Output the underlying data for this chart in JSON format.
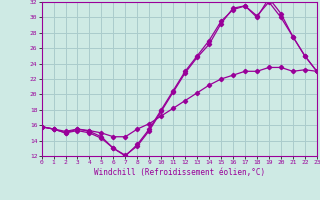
{
  "xlabel": "Windchill (Refroidissement éolien,°C)",
  "background_color": "#ceeae4",
  "grid_color": "#aacccc",
  "line_color": "#990099",
  "x_range": [
    0,
    23
  ],
  "y_range": [
    12,
    32
  ],
  "y_ticks": [
    12,
    14,
    16,
    18,
    20,
    22,
    24,
    26,
    28,
    30,
    32
  ],
  "x_ticks": [
    0,
    1,
    2,
    3,
    4,
    5,
    6,
    7,
    8,
    9,
    10,
    11,
    12,
    13,
    14,
    15,
    16,
    17,
    18,
    19,
    20,
    21,
    22,
    23
  ],
  "line1_x": [
    0,
    1,
    2,
    3,
    4,
    5,
    6,
    7,
    8,
    9,
    10,
    11,
    12,
    13,
    14,
    15,
    16,
    17,
    18,
    19,
    20,
    21,
    22,
    23
  ],
  "line1_y": [
    15.8,
    15.5,
    15.0,
    15.5,
    15.2,
    14.5,
    13.0,
    12.0,
    13.5,
    15.5,
    18.0,
    20.5,
    23.0,
    25.0,
    27.0,
    29.5,
    31.0,
    31.5,
    30.0,
    32.5,
    30.5,
    27.5,
    25.0,
    23.0
  ],
  "line2_x": [
    0,
    1,
    2,
    3,
    4,
    5,
    6,
    7,
    8,
    9,
    10,
    11,
    12,
    13,
    14,
    15,
    16,
    17,
    18,
    19,
    20,
    21,
    22,
    23
  ],
  "line2_y": [
    15.8,
    15.5,
    15.0,
    15.3,
    15.0,
    14.3,
    13.0,
    12.1,
    13.3,
    15.3,
    17.8,
    20.3,
    22.8,
    24.8,
    26.5,
    29.2,
    31.2,
    31.5,
    30.2,
    32.0,
    30.0,
    27.5,
    25.0,
    23.0
  ],
  "line3_x": [
    0,
    1,
    2,
    3,
    4,
    5,
    6,
    7,
    8,
    9,
    10,
    11,
    12,
    13,
    14,
    15,
    16,
    17,
    18,
    19,
    20,
    21,
    22,
    23
  ],
  "line3_y": [
    15.8,
    15.5,
    15.2,
    15.5,
    15.3,
    15.0,
    14.5,
    14.5,
    15.5,
    16.2,
    17.2,
    18.2,
    19.2,
    20.2,
    21.2,
    22.0,
    22.5,
    23.0,
    23.0,
    23.5,
    23.5,
    23.0,
    23.2,
    23.0
  ]
}
